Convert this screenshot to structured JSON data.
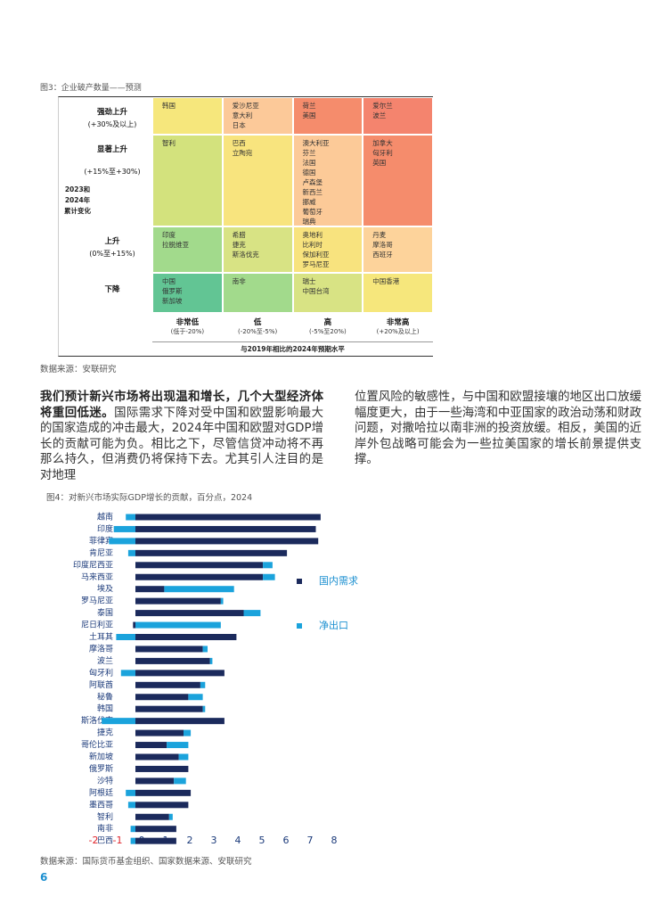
{
  "figure3": {
    "caption": "图3：企业破产数量——预测",
    "row_header": "2023和2024年累计变化",
    "rows": [
      {
        "label": "强劲上升",
        "range": "(+30%及以上)",
        "cells": [
          {
            "countries": [
              "韩国"
            ],
            "color": "#f6e77c"
          },
          {
            "countries": [
              "爱沙尼亚",
              "意大利",
              "日本"
            ],
            "color": "#fcc999"
          },
          {
            "countries": [
              "荷兰",
              "美国"
            ],
            "color": "#f58c6c"
          },
          {
            "countries": [
              "爱尔兰",
              "波兰"
            ],
            "color": "#f4846e"
          }
        ]
      },
      {
        "label": "显著上升",
        "range": "(+15%至+30%)",
        "cells": [
          {
            "countries": [
              "智利"
            ],
            "color": "#d3e27d"
          },
          {
            "countries": [
              "巴西",
              "立陶宛"
            ],
            "color": "#f8e47e"
          },
          {
            "countries": [
              "澳大利亚",
              "芬兰",
              "法国",
              "德国",
              "卢森堡",
              "新西兰",
              "挪威",
              "葡萄牙",
              "瑞典"
            ],
            "color": "#fcca98"
          },
          {
            "countries": [
              "加拿大",
              "匈牙利",
              "英国"
            ],
            "color": "#f58c6c"
          }
        ]
      },
      {
        "label": "上升",
        "range": "(0%至+15%)",
        "cells": [
          {
            "countries": [
              "印度",
              "拉脱维亚"
            ],
            "color": "#a2da8c"
          },
          {
            "countries": [
              "希腊",
              "捷克",
              "斯洛伐克"
            ],
            "color": "#d8e384"
          },
          {
            "countries": [
              "奥地利",
              "比利时",
              "保加利亚",
              "罗马尼亚"
            ],
            "color": "#f8e37e"
          },
          {
            "countries": [
              "丹麦",
              "摩洛哥",
              "西班牙"
            ],
            "color": "#fdd39b"
          }
        ]
      },
      {
        "label": "下降",
        "range": null,
        "cells": [
          {
            "countries": [
              "中国",
              "俄罗斯",
              "新加坡"
            ],
            "color": "#62c594"
          },
          {
            "countries": [
              "南非"
            ],
            "color": "#a2da8c"
          },
          {
            "countries": [
              "瑞士",
              "中国台湾"
            ],
            "color": "#d8e384"
          },
          {
            "countries": [
              "中国香港"
            ],
            "color": "#f6e77c"
          }
        ]
      }
    ],
    "columns": [
      {
        "label": "非常低",
        "range": "(低于-20%)"
      },
      {
        "label": "低",
        "range": "(-20%至-5%)"
      },
      {
        "label": "高",
        "range": "(-5%至20%)"
      },
      {
        "label": "非常高",
        "range": "(+20%及以上)"
      }
    ],
    "x_axis_title": "与2019年相比的2024年预期水平"
  },
  "source3": "数据来源：安联研究",
  "body": {
    "left_bold": "我们预计新兴市场将出现温和增长，几个大型经济体将重回低迷。",
    "left_text": "国际需求下降对受中国和欧盟影响最大的国家造成的冲击最大，2024年中国和欧盟对GDP增长的贡献可能为负。相比之下，尽管信贷冲动将不再那么持久，但消费仍将保持下去。尤其引人注目的是对地理",
    "right_text": "位置风险的敏感性，与中国和欧盟接壤的地区出口放缓幅度更大，由于一些海湾和中亚国家的政治动荡和财政问题，对撒哈拉以南非洲的投资放缓。相反，美国的近岸外包战略可能会为一些拉美国家的增长前景提供支撑。"
  },
  "chart_data": {
    "type": "bar",
    "orientation": "horizontal",
    "stacked": true,
    "title": "图4：对新兴市场实际GDP增长的贡献，百分点，2024",
    "categories": [
      "越南",
      "印度",
      "菲律宾",
      "肯尼亚",
      "印度尼西亚",
      "马来西亚",
      "埃及",
      "罗马尼亚",
      "泰国",
      "尼日利亚",
      "土耳其",
      "摩洛哥",
      "波兰",
      "匈牙利",
      "阿联酋",
      "秘鲁",
      "韩国",
      "斯洛伐克",
      "捷克",
      "哥伦比亚",
      "新加坡",
      "俄罗斯",
      "沙特",
      "阿根廷",
      "墨西哥",
      "智利",
      "南非",
      "巴西"
    ],
    "series": [
      {
        "name": "国内需求",
        "color": "#1b2a5c",
        "values": [
          7.7,
          7.5,
          7.6,
          6.3,
          5.3,
          5.3,
          1.2,
          3.55,
          4.5,
          -0.1,
          4.2,
          2.8,
          3.1,
          3.7,
          2.7,
          2.2,
          2.8,
          3.7,
          2.0,
          1.3,
          1.8,
          2.2,
          1.6,
          2.3,
          2.2,
          1.4,
          1.7,
          1.7
        ]
      },
      {
        "name": "净出口",
        "color": "#1ba3dc",
        "values": [
          -0.4,
          -0.9,
          -1.1,
          -0.3,
          0.4,
          0.5,
          2.9,
          0.1,
          0.7,
          3.55,
          -0.8,
          0.2,
          0.1,
          -0.6,
          0.2,
          0.6,
          0.1,
          -1.4,
          0.3,
          0.9,
          0.4,
          0,
          0.5,
          -0.4,
          -0.3,
          0.15,
          -0.2,
          -0.2
        ]
      }
    ],
    "xlim": [
      -2,
      8
    ],
    "xticks": [
      -2,
      -1,
      0,
      1,
      2,
      3,
      4,
      5,
      6,
      7,
      8
    ],
    "legend": "right"
  },
  "source4": "数据来源：国际货币基金组织、国家数据来源、安联研究",
  "page_number": "6"
}
